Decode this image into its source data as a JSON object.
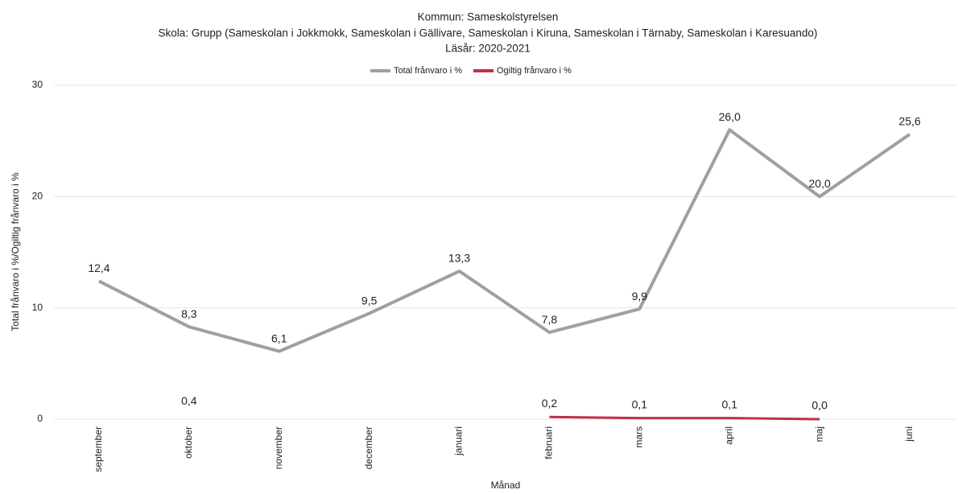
{
  "chart_data": {
    "type": "line",
    "title": "Kommun: Sameskolstyrelsen",
    "subtitle": "Skola: Grupp (Sameskolan i Jokkmokk, Sameskolan i Gällivare, Sameskolan i Kiruna, Sameskolan i Tärnaby, Sameskolan i Karesuando)",
    "subtitle2": "Läsår: 2020-2021",
    "x_label": "Månad",
    "y_label": "Total frånvaro i %/Ogiltig frånvaro i %",
    "categories": [
      "september",
      "oktober",
      "november",
      "december",
      "januari",
      "februari",
      "mars",
      "april",
      "maj",
      "juni"
    ],
    "series": [
      {
        "name": "Total frånvaro i %",
        "color": "#a0a0a0",
        "values": [
          12.4,
          8.3,
          6.1,
          9.5,
          13.3,
          7.8,
          9.9,
          26.0,
          20.0,
          25.6
        ],
        "value_labels": [
          "12,4",
          "8,3",
          "6,1",
          "9,5",
          "13,3",
          "7,8",
          "9,9",
          "26,0",
          "20,0",
          "25,6"
        ]
      },
      {
        "name": "Ogiltig frånvaro i %",
        "color": "#c0304a",
        "values": [
          null,
          0.4,
          null,
          null,
          null,
          0.2,
          0.1,
          0.1,
          0.0,
          null
        ],
        "value_labels": [
          null,
          "0,4",
          null,
          null,
          null,
          "0,2",
          "0,1",
          "0,1",
          "0,0",
          null
        ]
      }
    ],
    "ylim": [
      0,
      30
    ],
    "yticks": [
      0,
      10,
      20,
      30
    ],
    "grid": true,
    "legend": "top"
  }
}
